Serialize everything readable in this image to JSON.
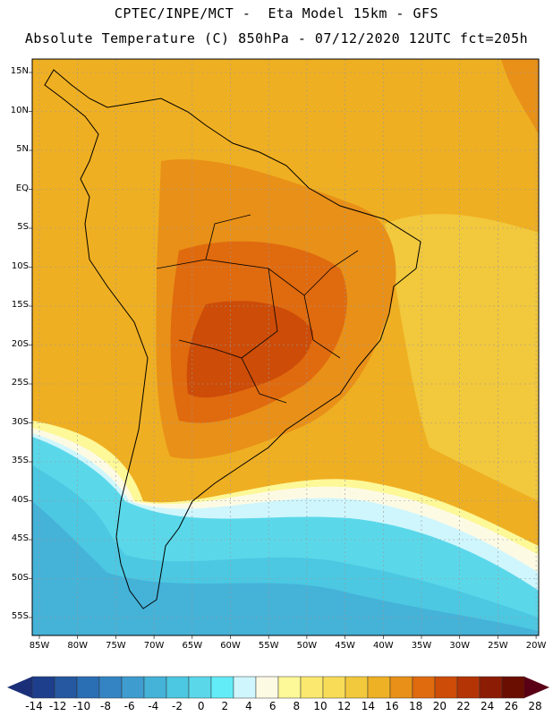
{
  "header": {
    "line1": "CPTEC/INPE/MCT -  Eta Model 15km - GFS",
    "line2": "Absolute Temperature (C) 850hPa - 07/12/2020 12UTC fct=205h"
  },
  "map": {
    "lat_labels": [
      "15N",
      "10N",
      "5N",
      "EQ",
      "5S",
      "10S",
      "15S",
      "20S",
      "25S",
      "30S",
      "35S",
      "40S",
      "45S",
      "50S",
      "55S"
    ],
    "lon_labels": [
      "85W",
      "80W",
      "75W",
      "70W",
      "65W",
      "60W",
      "55W",
      "50W",
      "45W",
      "40W",
      "35W",
      "30W",
      "25W",
      "20W"
    ]
  },
  "colorbar": {
    "labels": [
      "-14",
      "-12",
      "-10",
      "-8",
      "-6",
      "-4",
      "-2",
      "0",
      "2",
      "4",
      "6",
      "8",
      "10",
      "12",
      "14",
      "16",
      "18",
      "20",
      "22",
      "24",
      "26",
      "28"
    ],
    "colors": [
      "#1e3f8c",
      "#2558a0",
      "#2a6eb4",
      "#3484c4",
      "#3e9ccf",
      "#45b2d8",
      "#4cc8e2",
      "#5ad8ea",
      "#62ecf8",
      "#cff6fc",
      "#fdfae4",
      "#fdf898",
      "#fbe86e",
      "#f8dc58",
      "#f2c83c",
      "#eeb024",
      "#e89018",
      "#e06a0e",
      "#cc4c08",
      "#b43406",
      "#8c1c04",
      "#6a0e02"
    ],
    "low_arrow_color": "#1a2f78",
    "high_arrow_color": "#5a0016"
  }
}
